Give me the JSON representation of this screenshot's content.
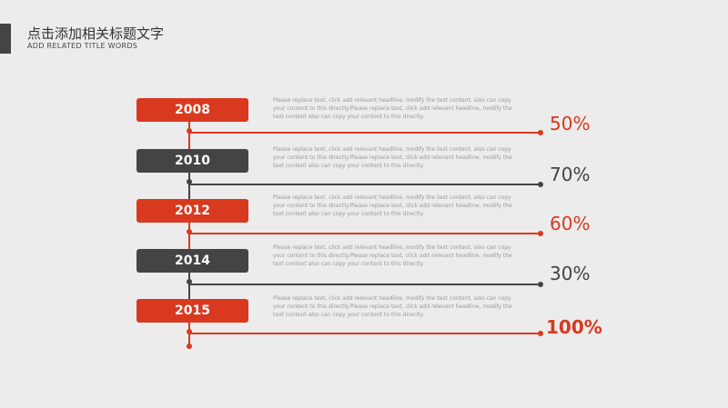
{
  "header": {
    "title": "点击添加相关标题文字",
    "subtitle": "ADD RELATED TITLE WORDS"
  },
  "timeline": {
    "entries": [
      {
        "year": "2008",
        "description": "Please replace text, click add relevant headline, modify the text content, also can copy your content to this directly.Please replace text, click add relevant headline, modify the text content also can copy your content to this directly.",
        "percent": "50%",
        "color": "#d9391f"
      },
      {
        "year": "2010",
        "description": "Please replace text, click add relevant headline, modify the text content, also can copy your content to this directly.Please replace text, click add relevant headline, modify the text content also can copy your content to this directly.",
        "percent": "70%",
        "color": "#444444"
      },
      {
        "year": "2012",
        "description": "Please replace text, click add relevant headline, modify the text content, also can copy your content to this directly.Please replace text, click add relevant headline, modify the text content also can copy your content to this directly.",
        "percent": "60%",
        "color": "#d9391f"
      },
      {
        "year": "2014",
        "description": "Please replace text, click add relevant headline, modify the text content, also can copy your content to this directly.Please replace text, click add relevant headline, modify the text content also can copy your content to this directly.",
        "percent": "30%",
        "color": "#444444"
      },
      {
        "year": "2015",
        "description": "Please replace text, click add relevant headline, modify the text content, also can copy your content to this directly.Please replace text, click add relevant headline, modify the text content also can copy your content to this directly.",
        "percent": "100%",
        "color": "#d9391f"
      }
    ]
  }
}
